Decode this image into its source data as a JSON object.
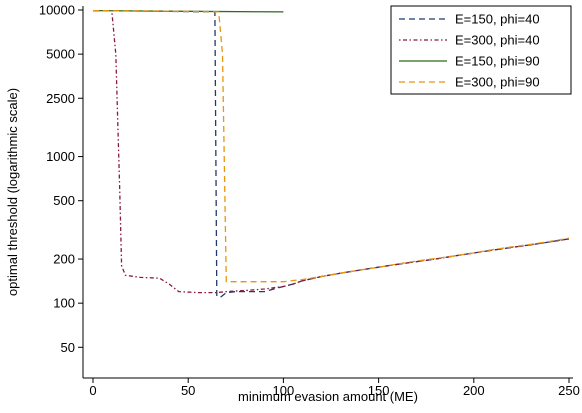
{
  "chart_data": {
    "type": "line",
    "title": "",
    "xlabel": "minimum evasion amount (ME)",
    "ylabel": "optimal threshold (logarithmic scale)",
    "xlim": [
      0,
      250
    ],
    "ylim": [
      45,
      10000
    ],
    "yscale": "log",
    "x_ticks": [
      0,
      50,
      100,
      150,
      200,
      250
    ],
    "y_ticks": [
      50,
      100,
      200,
      500,
      1000,
      2500,
      5000,
      10000
    ],
    "legend_position": "top-right",
    "series": [
      {
        "name": "E=150, phi=40",
        "color": "#1f3a6e",
        "dash": "dashed",
        "points": [
          [
            0,
            9900
          ],
          [
            64,
            9700
          ],
          [
            65,
            112
          ],
          [
            67,
            110
          ],
          [
            70,
            118
          ],
          [
            75,
            120
          ],
          [
            90,
            120
          ],
          [
            95,
            125
          ],
          [
            100,
            130
          ],
          [
            105,
            135
          ],
          [
            110,
            142
          ],
          [
            120,
            152
          ],
          [
            130,
            160
          ],
          [
            140,
            168
          ],
          [
            150,
            176
          ],
          [
            160,
            184
          ],
          [
            170,
            192
          ],
          [
            180,
            200
          ],
          [
            190,
            210
          ],
          [
            200,
            220
          ],
          [
            210,
            230
          ],
          [
            220,
            240
          ],
          [
            230,
            250
          ],
          [
            240,
            262
          ],
          [
            250,
            275
          ]
        ]
      },
      {
        "name": "E=300, phi=40",
        "color": "#8b1a3a",
        "dash": "dashdot",
        "points": [
          [
            10,
            9500
          ],
          [
            12,
            5000
          ],
          [
            14,
            600
          ],
          [
            15,
            180
          ],
          [
            17,
            155
          ],
          [
            25,
            150
          ],
          [
            35,
            148
          ],
          [
            40,
            135
          ],
          [
            45,
            120
          ],
          [
            55,
            118
          ],
          [
            65,
            118
          ],
          [
            70,
            120
          ],
          [
            80,
            122
          ],
          [
            90,
            125
          ],
          [
            100,
            130
          ],
          [
            105,
            135
          ],
          [
            110,
            142
          ],
          [
            120,
            152
          ],
          [
            130,
            160
          ],
          [
            140,
            168
          ],
          [
            150,
            176
          ],
          [
            160,
            184
          ],
          [
            170,
            192
          ],
          [
            180,
            200
          ],
          [
            190,
            210
          ],
          [
            200,
            220
          ],
          [
            210,
            230
          ],
          [
            220,
            240
          ],
          [
            230,
            250
          ],
          [
            240,
            262
          ],
          [
            250,
            275
          ]
        ]
      },
      {
        "name": "E=150, phi=90",
        "color": "#2e6b1f",
        "dash": "solid",
        "points": [
          [
            0,
            9900
          ],
          [
            50,
            9800
          ],
          [
            100,
            9700
          ]
        ]
      },
      {
        "name": "E=300, phi=90",
        "color": "#e8950f",
        "dash": "dashed",
        "points": [
          [
            0,
            9900
          ],
          [
            50,
            9800
          ],
          [
            65,
            9700
          ],
          [
            66,
            9700
          ],
          [
            68,
            5000
          ],
          [
            70,
            140
          ],
          [
            75,
            140
          ],
          [
            95,
            140
          ],
          [
            100,
            140
          ],
          [
            110,
            145
          ],
          [
            120,
            152
          ],
          [
            130,
            160
          ],
          [
            140,
            168
          ],
          [
            150,
            176
          ],
          [
            160,
            185
          ],
          [
            170,
            194
          ],
          [
            180,
            202
          ],
          [
            190,
            210
          ],
          [
            200,
            220
          ],
          [
            210,
            232
          ],
          [
            220,
            242
          ],
          [
            230,
            252
          ],
          [
            240,
            264
          ],
          [
            250,
            278
          ]
        ]
      }
    ]
  }
}
